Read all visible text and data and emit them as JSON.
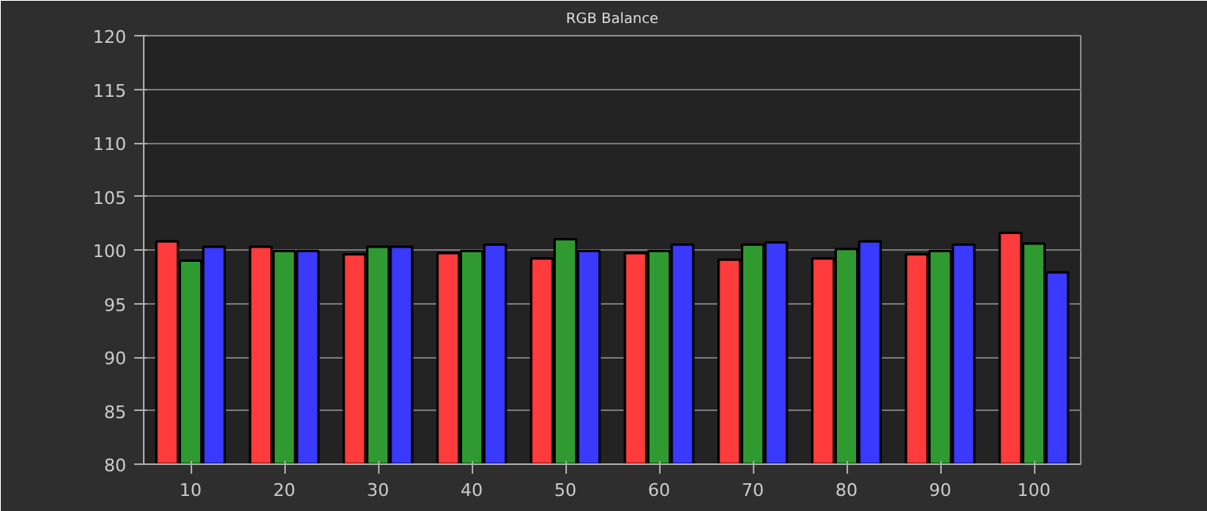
{
  "chart_data": {
    "type": "bar",
    "title": "RGB Balance",
    "categories": [
      "10",
      "20",
      "30",
      "40",
      "50",
      "60",
      "70",
      "80",
      "90",
      "100"
    ],
    "series": [
      {
        "color": "#ff3b3b",
        "values": [
          100.8,
          100.3,
          99.6,
          99.7,
          99.2,
          99.7,
          99.1,
          99.2,
          99.6,
          101.6
        ]
      },
      {
        "color": "#2f9a2f",
        "values": [
          99.0,
          99.9,
          100.3,
          99.9,
          101.0,
          99.9,
          100.5,
          100.1,
          99.9,
          100.6
        ]
      },
      {
        "color": "#3a3aff",
        "values": [
          100.3,
          99.9,
          100.3,
          100.5,
          99.9,
          100.5,
          100.7,
          100.8,
          100.5,
          97.9
        ]
      }
    ],
    "ylim": [
      80,
      120
    ],
    "yticks": [
      80,
      85,
      90,
      95,
      100,
      105,
      110,
      115,
      120
    ],
    "grid": "y"
  }
}
